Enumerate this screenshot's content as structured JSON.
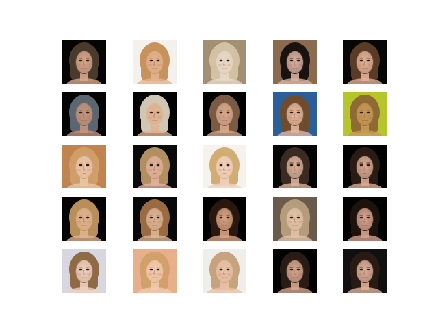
{
  "figure": {
    "rows": 5,
    "cols": 5,
    "tiles": [
      {
        "bg": "#050505",
        "hair": "#4a3a2c",
        "skin": "#d7a78a",
        "lips": "#a15a50"
      },
      {
        "bg": "#f4f0ec",
        "hair": "#c7925b",
        "skin": "#e2b18f",
        "lips": "#b26a5c"
      },
      {
        "bg": "#a38f74",
        "hair": "#d2c2a3",
        "skin": "#e8d7c6",
        "lips": "#b49283"
      },
      {
        "bg": "#8a6b4f",
        "hair": "#1a1210",
        "skin": "#d8b1a1",
        "lips": "#a05d56"
      },
      {
        "bg": "#070707",
        "hair": "#5a3b25",
        "skin": "#e0b196",
        "lips": "#9b5850"
      },
      {
        "bg": "#040404",
        "hair": "#5c6670",
        "skin": "#c69379",
        "lips": "#8f574f"
      },
      {
        "bg": "#020202",
        "hair": "#d1c5b4",
        "skin": "#dfb18e",
        "lips": "#9f6a5b"
      },
      {
        "bg": "#010101",
        "hair": "#7b5a43",
        "skin": "#d7a88b",
        "lips": "#8b5147"
      },
      {
        "bg": "#2c5f9a",
        "hair": "#6f4c2c",
        "skin": "#e2b59c",
        "lips": "#a86b5b"
      },
      {
        "bg": "#b7c52d",
        "hair": "#8e6b33",
        "skin": "#c79858",
        "lips": "#7e4f2c"
      },
      {
        "bg": "#c08450",
        "hair": "#cf9e6b",
        "skin": "#e8c6a9",
        "lips": "#b57b6a"
      },
      {
        "bg": "#0a0a0a",
        "hair": "#b28f61",
        "skin": "#e1b09d",
        "lips": "#a45f5d"
      },
      {
        "bg": "#f6f2ed",
        "hair": "#d2ad73",
        "skin": "#efd0bf",
        "lips": "#c9817a"
      },
      {
        "bg": "#050505",
        "hair": "#3a2a20",
        "skin": "#d9b29b",
        "lips": "#a86764"
      },
      {
        "bg": "#000000",
        "hair": "#2b1b15",
        "skin": "#d9ab92",
        "lips": "#9b5c57"
      },
      {
        "bg": "#050505",
        "hair": "#b88e5a",
        "skin": "#dfb18f",
        "lips": "#b46c5d"
      },
      {
        "bg": "#080808",
        "hair": "#9a6a41",
        "skin": "#ddb496",
        "lips": "#ac6c5f"
      },
      {
        "bg": "#000000",
        "hair": "#2a180f",
        "skin": "#d7a282",
        "lips": "#9b594f"
      },
      {
        "bg": "#6b5b4c",
        "hair": "#b59c7b",
        "skin": "#e1c1a5",
        "lips": "#b07b6d"
      },
      {
        "bg": "#020202",
        "hair": "#1e120d",
        "skin": "#d5a38e",
        "lips": "#9a5450"
      },
      {
        "bg": "#d8d6de",
        "hair": "#8e6a46",
        "skin": "#efd0bf",
        "lips": "#c58a82"
      },
      {
        "bg": "#e7b08a",
        "hair": "#d2a06a",
        "skin": "#f0c9b0",
        "lips": "#c0837b"
      },
      {
        "bg": "#f0eeea",
        "hair": "#c6a37e",
        "skin": "#e8c1a7",
        "lips": "#bf7f73"
      },
      {
        "bg": "#020202",
        "hair": "#2a1c15",
        "skin": "#d5a78e",
        "lips": "#9f5e58"
      },
      {
        "bg": "#101010",
        "hair": "#2a1a14",
        "skin": "#ddb09a",
        "lips": "#a45e5a"
      }
    ]
  }
}
